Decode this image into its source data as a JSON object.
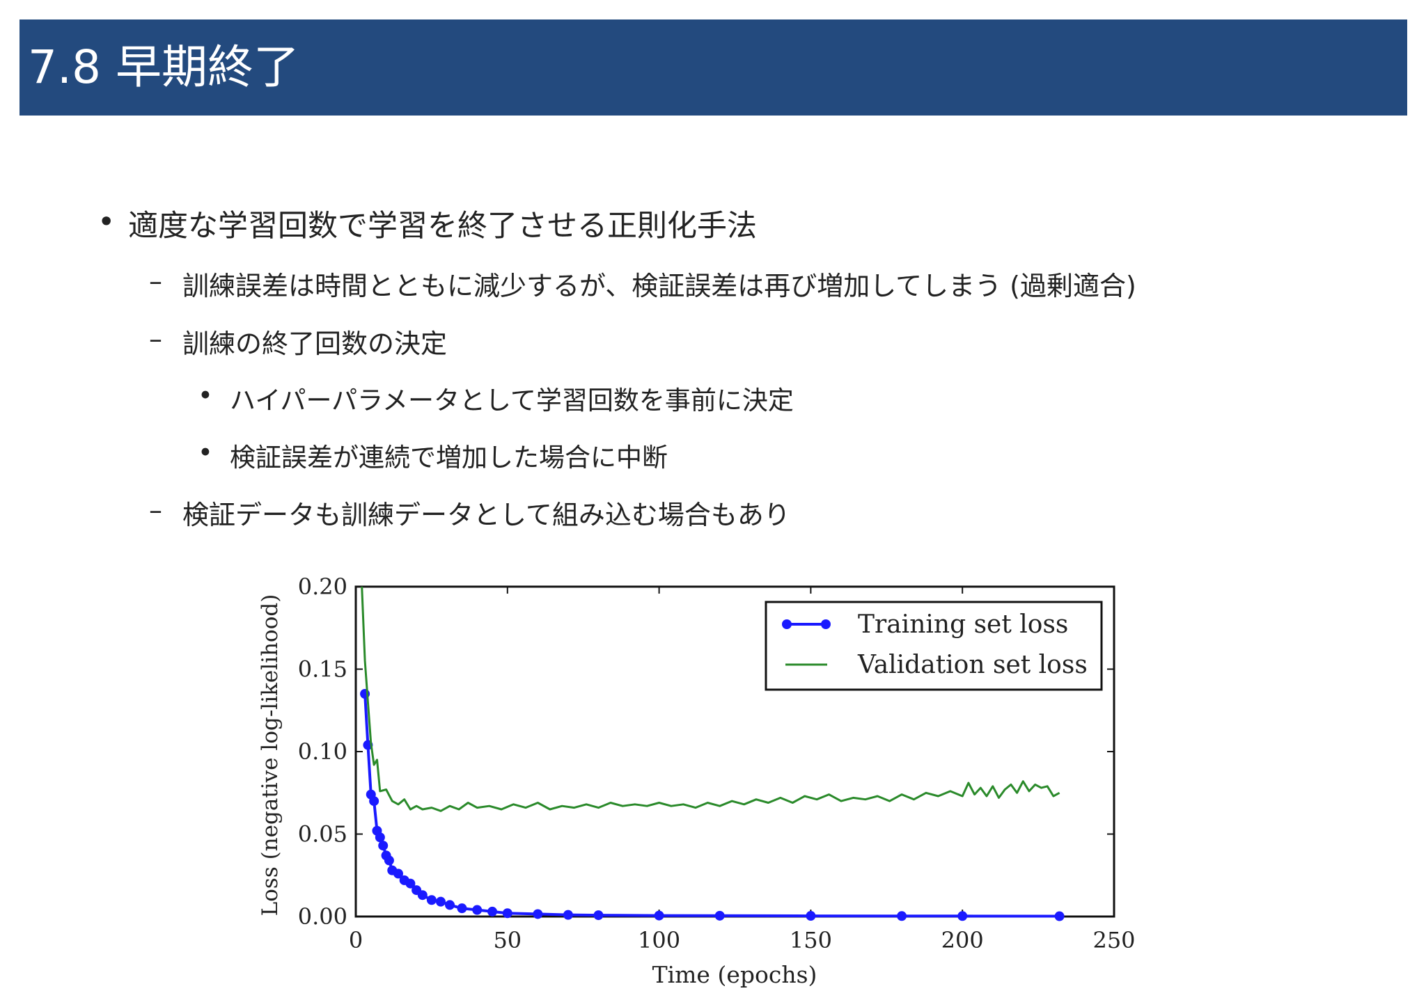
{
  "slide": {
    "title": "7.8 早期終了",
    "bullets": [
      {
        "level": 1,
        "marker": "•",
        "text": "適度な学習回数で学習を終了させる正則化手法"
      },
      {
        "level": 2,
        "marker": "–",
        "text": "訓練誤差は時間とともに減少するが、検証誤差は再び増加してしまう (過剰適合)"
      },
      {
        "level": 2,
        "marker": "–",
        "text": "訓練の終了回数の決定"
      },
      {
        "level": 3,
        "marker": "•",
        "text": "ハイパーパラメータとして学習回数を事前に決定"
      },
      {
        "level": 3,
        "marker": "•",
        "text": "検証誤差が連続で増加した場合に中断"
      },
      {
        "level": 2,
        "marker": "–",
        "text": "検証データも訓練データとして組み込む場合もあり"
      }
    ]
  },
  "colors": {
    "title_bar": "#234a7e",
    "title_text": "#ffffff",
    "training": "#1a1aff",
    "validation": "#2a8a2a"
  },
  "chart_data": {
    "type": "line",
    "xlabel": "Time (epochs)",
    "ylabel": "Loss (negative log-likelihood)",
    "xlim": [
      0,
      250
    ],
    "ylim": [
      0,
      0.2
    ],
    "xticks": [
      "0",
      "50",
      "100",
      "150",
      "200",
      "250"
    ],
    "yticks": [
      "0.00",
      "0.05",
      "0.10",
      "0.15",
      "0.20"
    ],
    "grid": false,
    "legend_position": "top-right",
    "series": [
      {
        "name": "Training set loss",
        "marker": "circle",
        "x": [
          3,
          4,
          5,
          6,
          7,
          8,
          9,
          10,
          11,
          12,
          14,
          16,
          18,
          20,
          22,
          25,
          28,
          31,
          35,
          40,
          45,
          50,
          60,
          70,
          80,
          100,
          120,
          150,
          180,
          200,
          232
        ],
        "y": [
          0.135,
          0.104,
          0.074,
          0.07,
          0.052,
          0.048,
          0.043,
          0.037,
          0.034,
          0.028,
          0.026,
          0.022,
          0.02,
          0.016,
          0.013,
          0.01,
          0.009,
          0.007,
          0.005,
          0.004,
          0.003,
          0.002,
          0.0015,
          0.001,
          0.0008,
          0.0006,
          0.0005,
          0.0004,
          0.0003,
          0.0003,
          0.0002
        ]
      },
      {
        "name": "Validation set loss",
        "x": [
          2,
          3,
          4,
          5,
          6,
          7,
          8,
          10,
          12,
          14,
          16,
          18,
          20,
          22,
          25,
          28,
          31,
          34,
          37,
          40,
          44,
          48,
          52,
          56,
          60,
          64,
          68,
          72,
          76,
          80,
          84,
          88,
          92,
          96,
          100,
          104,
          108,
          112,
          116,
          120,
          124,
          128,
          132,
          136,
          140,
          144,
          148,
          152,
          156,
          160,
          164,
          168,
          172,
          176,
          180,
          184,
          188,
          192,
          196,
          200,
          202,
          204,
          206,
          208,
          210,
          212,
          214,
          216,
          218,
          220,
          222,
          224,
          226,
          228,
          230,
          232
        ],
        "y": [
          0.2,
          0.155,
          0.13,
          0.105,
          0.092,
          0.095,
          0.076,
          0.077,
          0.07,
          0.068,
          0.071,
          0.065,
          0.067,
          0.065,
          0.066,
          0.064,
          0.067,
          0.065,
          0.069,
          0.066,
          0.067,
          0.065,
          0.068,
          0.066,
          0.069,
          0.065,
          0.067,
          0.066,
          0.068,
          0.066,
          0.069,
          0.067,
          0.068,
          0.067,
          0.069,
          0.067,
          0.068,
          0.066,
          0.069,
          0.067,
          0.07,
          0.068,
          0.071,
          0.069,
          0.072,
          0.069,
          0.073,
          0.071,
          0.074,
          0.07,
          0.072,
          0.071,
          0.073,
          0.07,
          0.074,
          0.071,
          0.075,
          0.073,
          0.076,
          0.073,
          0.081,
          0.074,
          0.078,
          0.073,
          0.079,
          0.072,
          0.077,
          0.08,
          0.075,
          0.082,
          0.076,
          0.08,
          0.078,
          0.079,
          0.073,
          0.075
        ]
      }
    ]
  }
}
